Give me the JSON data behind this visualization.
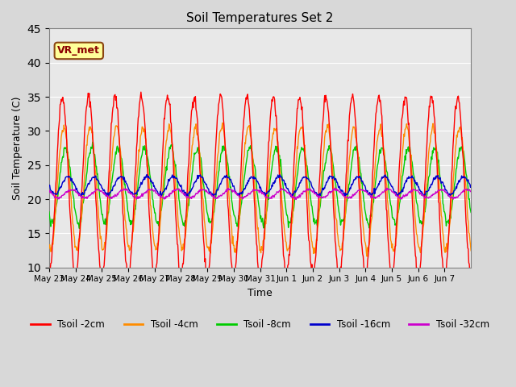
{
  "title": "Soil Temperatures Set 2",
  "xlabel": "Time",
  "ylabel": "Soil Temperature (C)",
  "ylim": [
    10,
    45
  ],
  "yticks": [
    10,
    15,
    20,
    25,
    30,
    35,
    40,
    45
  ],
  "colors": {
    "Tsoil -2cm": "#ff0000",
    "Tsoil -4cm": "#ff8c00",
    "Tsoil -8cm": "#00cc00",
    "Tsoil -16cm": "#0000cc",
    "Tsoil -32cm": "#cc00cc"
  },
  "annotation_text": "VR_met",
  "tick_labels": [
    "May 23",
    "May 24",
    "May 25",
    "May 26",
    "May 27",
    "May 28",
    "May 29",
    "May 30",
    "May 31",
    "Jun 1",
    "Jun 2",
    "Jun 3",
    "Jun 4",
    "Jun 5",
    "Jun 6",
    "Jun 7"
  ],
  "num_days": 16,
  "points_per_day": 48
}
